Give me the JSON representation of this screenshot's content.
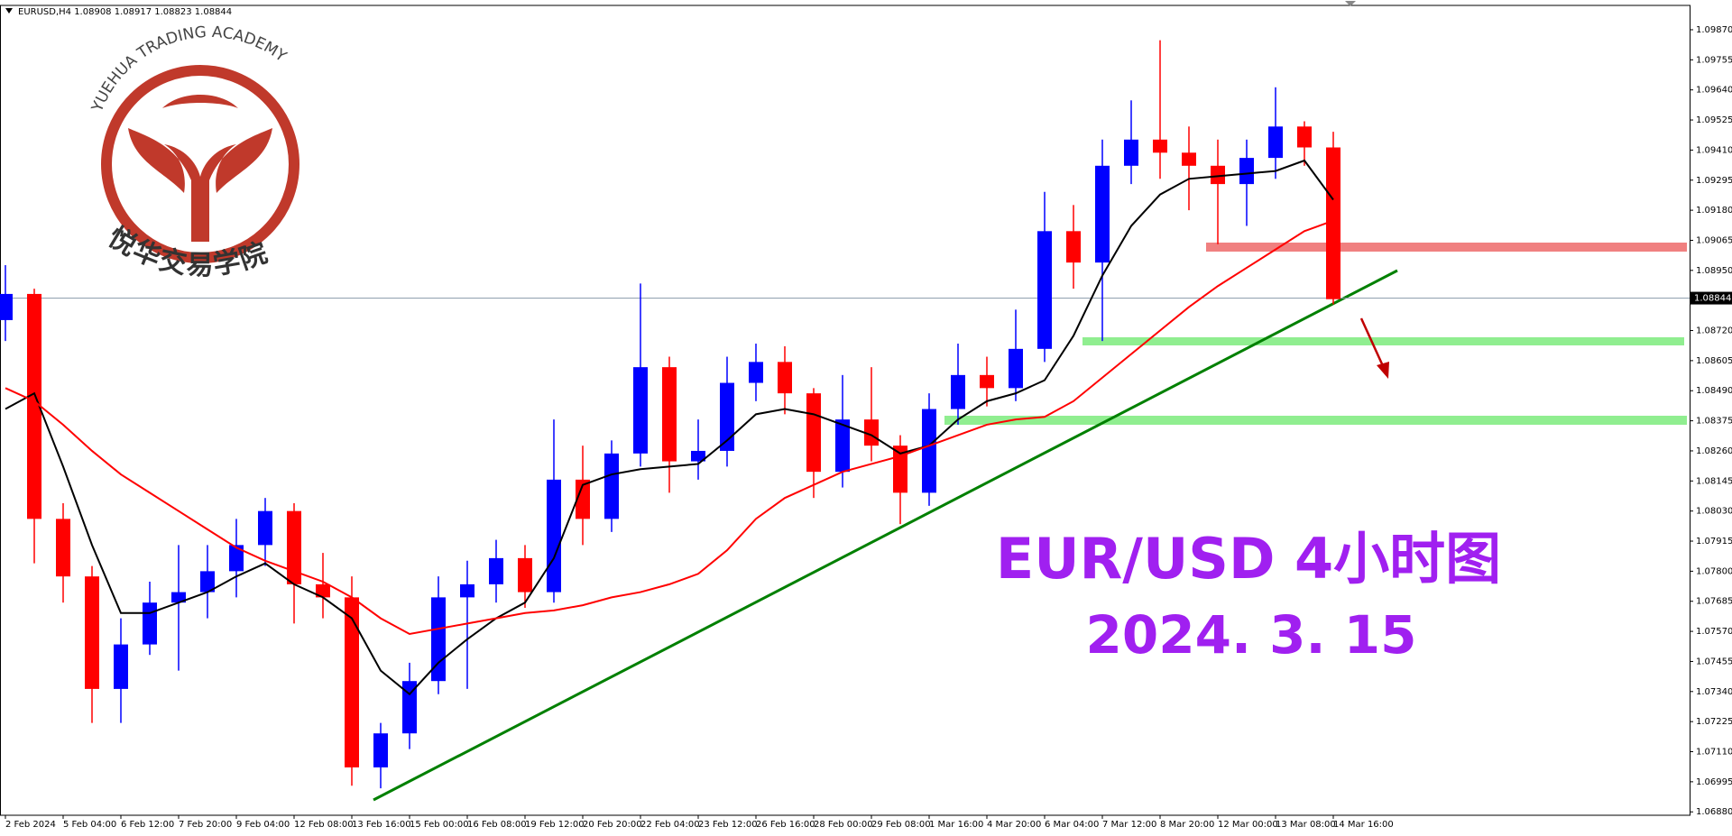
{
  "chart_data": {
    "type": "candlestick",
    "header": "EURUSD,H4 1.08908 1.08917 1.08823 1.08844",
    "logo_text": "YUEHUA TRADING ACADEMY",
    "logo_text_cn": "悦华交易学院",
    "title": "EUR/USD 4小时图",
    "subtitle": "2024. 3. 15",
    "up_color": "#0000ff",
    "down_color": "#ff0000",
    "categories": [
      "2 Feb 2024",
      null,
      "5 Feb 04:00",
      null,
      "6 Feb 12:00",
      null,
      "7 Feb 20:00",
      null,
      "9 Feb 04:00",
      null,
      "12 Feb 08:00",
      null,
      "13 Feb 16:00",
      null,
      "15 Feb 00:00",
      null,
      "16 Feb 08:00",
      null,
      "19 Feb 12:00",
      null,
      "20 Feb 20:00",
      null,
      "22 Feb 04:00",
      null,
      "23 Feb 12:00",
      null,
      "26 Feb 16:00",
      null,
      "28 Feb 00:00",
      null,
      "29 Feb 08:00",
      null,
      "1 Mar 16:00",
      null,
      "4 Mar 20:00",
      null,
      "6 Mar 04:00",
      null,
      "7 Mar 12:00",
      null,
      "8 Mar 20:00",
      null,
      "12 Mar 00:00",
      null,
      "13 Mar 08:00",
      null,
      "14 Mar 16:00"
    ],
    "open": [
      1.0876,
      1.0886,
      1.08,
      1.0778,
      1.0735,
      1.0752,
      1.0768,
      1.0772,
      1.078,
      1.079,
      1.0803,
      1.0775,
      1.077,
      1.0705,
      1.0718,
      1.0738,
      1.077,
      1.0775,
      1.0785,
      1.0772,
      1.0815,
      1.08,
      1.0825,
      1.0858,
      1.0822,
      1.0826,
      1.0852,
      1.086,
      1.0848,
      1.0818,
      1.0838,
      1.0828,
      1.081,
      1.0842,
      1.0855,
      1.085,
      1.0865,
      1.091,
      1.0898,
      1.0935,
      1.0945,
      1.094,
      1.0935,
      1.0928,
      1.0938,
      1.095,
      1.0942
    ],
    "high": [
      1.0897,
      1.0888,
      1.0806,
      1.0782,
      1.0762,
      1.0776,
      1.079,
      1.079,
      1.08,
      1.0808,
      1.0806,
      1.0787,
      1.0778,
      1.0722,
      1.0745,
      1.0778,
      1.0784,
      1.0792,
      1.079,
      1.0838,
      1.0828,
      1.083,
      1.089,
      1.0862,
      1.0838,
      1.0862,
      1.0867,
      1.0866,
      1.085,
      1.0855,
      1.0858,
      1.0832,
      1.0848,
      1.0867,
      1.0862,
      1.088,
      1.0925,
      1.092,
      1.0945,
      1.096,
      1.0983,
      1.095,
      1.0945,
      1.0945,
      1.0965,
      1.0952,
      1.0948
    ],
    "low": [
      1.0868,
      1.0783,
      1.0768,
      1.0722,
      1.0722,
      1.0748,
      1.0742,
      1.0762,
      1.077,
      1.0782,
      1.076,
      1.0762,
      1.0698,
      1.0697,
      1.0712,
      1.0733,
      1.0735,
      1.0768,
      1.0766,
      1.0768,
      1.079,
      1.0795,
      1.082,
      1.081,
      1.0815,
      1.082,
      1.0845,
      1.084,
      1.0808,
      1.0812,
      1.0822,
      1.0798,
      1.0805,
      1.0836,
      1.0843,
      1.0845,
      1.086,
      1.0888,
      1.0868,
      1.0928,
      1.093,
      1.0918,
      1.0905,
      1.0912,
      1.093,
      1.0935,
      1.0882
    ],
    "close": [
      1.0886,
      1.08,
      1.0778,
      1.0735,
      1.0752,
      1.0768,
      1.0772,
      1.078,
      1.079,
      1.0803,
      1.0775,
      1.077,
      1.0705,
      1.0718,
      1.0738,
      1.077,
      1.0775,
      1.0785,
      1.0772,
      1.0815,
      1.08,
      1.0825,
      1.0858,
      1.0822,
      1.0826,
      1.0852,
      1.086,
      1.0848,
      1.0818,
      1.0838,
      1.0828,
      1.081,
      1.0842,
      1.0855,
      1.085,
      1.0865,
      1.091,
      1.0898,
      1.0935,
      1.0945,
      1.094,
      1.0935,
      1.0928,
      1.0938,
      1.095,
      1.0942,
      1.0884
    ],
    "lines": [
      {
        "color": "#000000",
        "values": [
          1.0842,
          1.0848,
          1.082,
          1.079,
          1.0764,
          1.0764,
          1.0768,
          1.0772,
          1.0778,
          1.0783,
          1.0775,
          1.077,
          1.0762,
          1.0742,
          1.0733,
          1.0745,
          1.0754,
          1.0762,
          1.0768,
          1.0785,
          1.0813,
          1.0817,
          1.0819,
          1.082,
          1.0821,
          1.083,
          1.084,
          1.0842,
          1.084,
          1.0836,
          1.0832,
          1.0825,
          1.0828,
          1.0838,
          1.0845,
          1.0848,
          1.0853,
          1.087,
          1.0893,
          1.0912,
          1.0924,
          1.093,
          1.0931,
          1.0932,
          1.0933,
          1.0937,
          1.0922
        ]
      },
      {
        "color": "#ff0000",
        "values": [
          1.085,
          1.0845,
          1.0836,
          1.0826,
          1.0817,
          1.081,
          1.0803,
          1.0796,
          1.0789,
          1.0784,
          1.078,
          1.0776,
          1.077,
          1.0762,
          1.0756,
          1.0758,
          1.076,
          1.0762,
          1.0764,
          1.0765,
          1.0767,
          1.077,
          1.0772,
          1.0775,
          1.0779,
          1.0788,
          1.08,
          1.0808,
          1.0813,
          1.0818,
          1.0821,
          1.0824,
          1.0828,
          1.0832,
          1.0836,
          1.0838,
          1.0839,
          1.0845,
          1.0854,
          1.0863,
          1.0872,
          1.0881,
          1.0889,
          1.0896,
          1.0903,
          1.091,
          1.0914
        ]
      }
    ],
    "current_price": {
      "value": 1.08844,
      "label": "1.08844"
    },
    "ylim": [
      1.06867,
      1.09963
    ],
    "yticks": [
      {
        "value": 1.0987,
        "label": "1.09870"
      },
      {
        "value": 1.09755,
        "label": "1.09755"
      },
      {
        "value": 1.0964,
        "label": "1.09640"
      },
      {
        "value": 1.09525,
        "label": "1.09525"
      },
      {
        "value": 1.0941,
        "label": "1.09410"
      },
      {
        "value": 1.09295,
        "label": "1.09295"
      },
      {
        "value": 1.0918,
        "label": "1.09180"
      },
      {
        "value": 1.09065,
        "label": "1.09065"
      },
      {
        "value": 1.0895,
        "label": "1.08950"
      },
      {
        "value": 1.0872,
        "label": "1.08720"
      },
      {
        "value": 1.08605,
        "label": "1.08605"
      },
      {
        "value": 1.0849,
        "label": "1.08490"
      },
      {
        "value": 1.08375,
        "label": "1.08375"
      },
      {
        "value": 1.0826,
        "label": "1.08260"
      },
      {
        "value": 1.08145,
        "label": "1.08145"
      },
      {
        "value": 1.0803,
        "label": "1.08030"
      },
      {
        "value": 1.07915,
        "label": "1.07915"
      },
      {
        "value": 1.078,
        "label": "1.07800"
      },
      {
        "value": 1.07685,
        "label": "1.07685"
      },
      {
        "value": 1.0757,
        "label": "1.07570"
      },
      {
        "value": 1.07455,
        "label": "1.07455"
      },
      {
        "value": 1.0734,
        "label": "1.07340"
      },
      {
        "value": 1.07225,
        "label": "1.07225"
      },
      {
        "value": 1.0711,
        "label": "1.07110"
      },
      {
        "value": 1.06995,
        "label": "1.06995"
      },
      {
        "value": 1.0688,
        "label": "1.06880"
      }
    ]
  }
}
